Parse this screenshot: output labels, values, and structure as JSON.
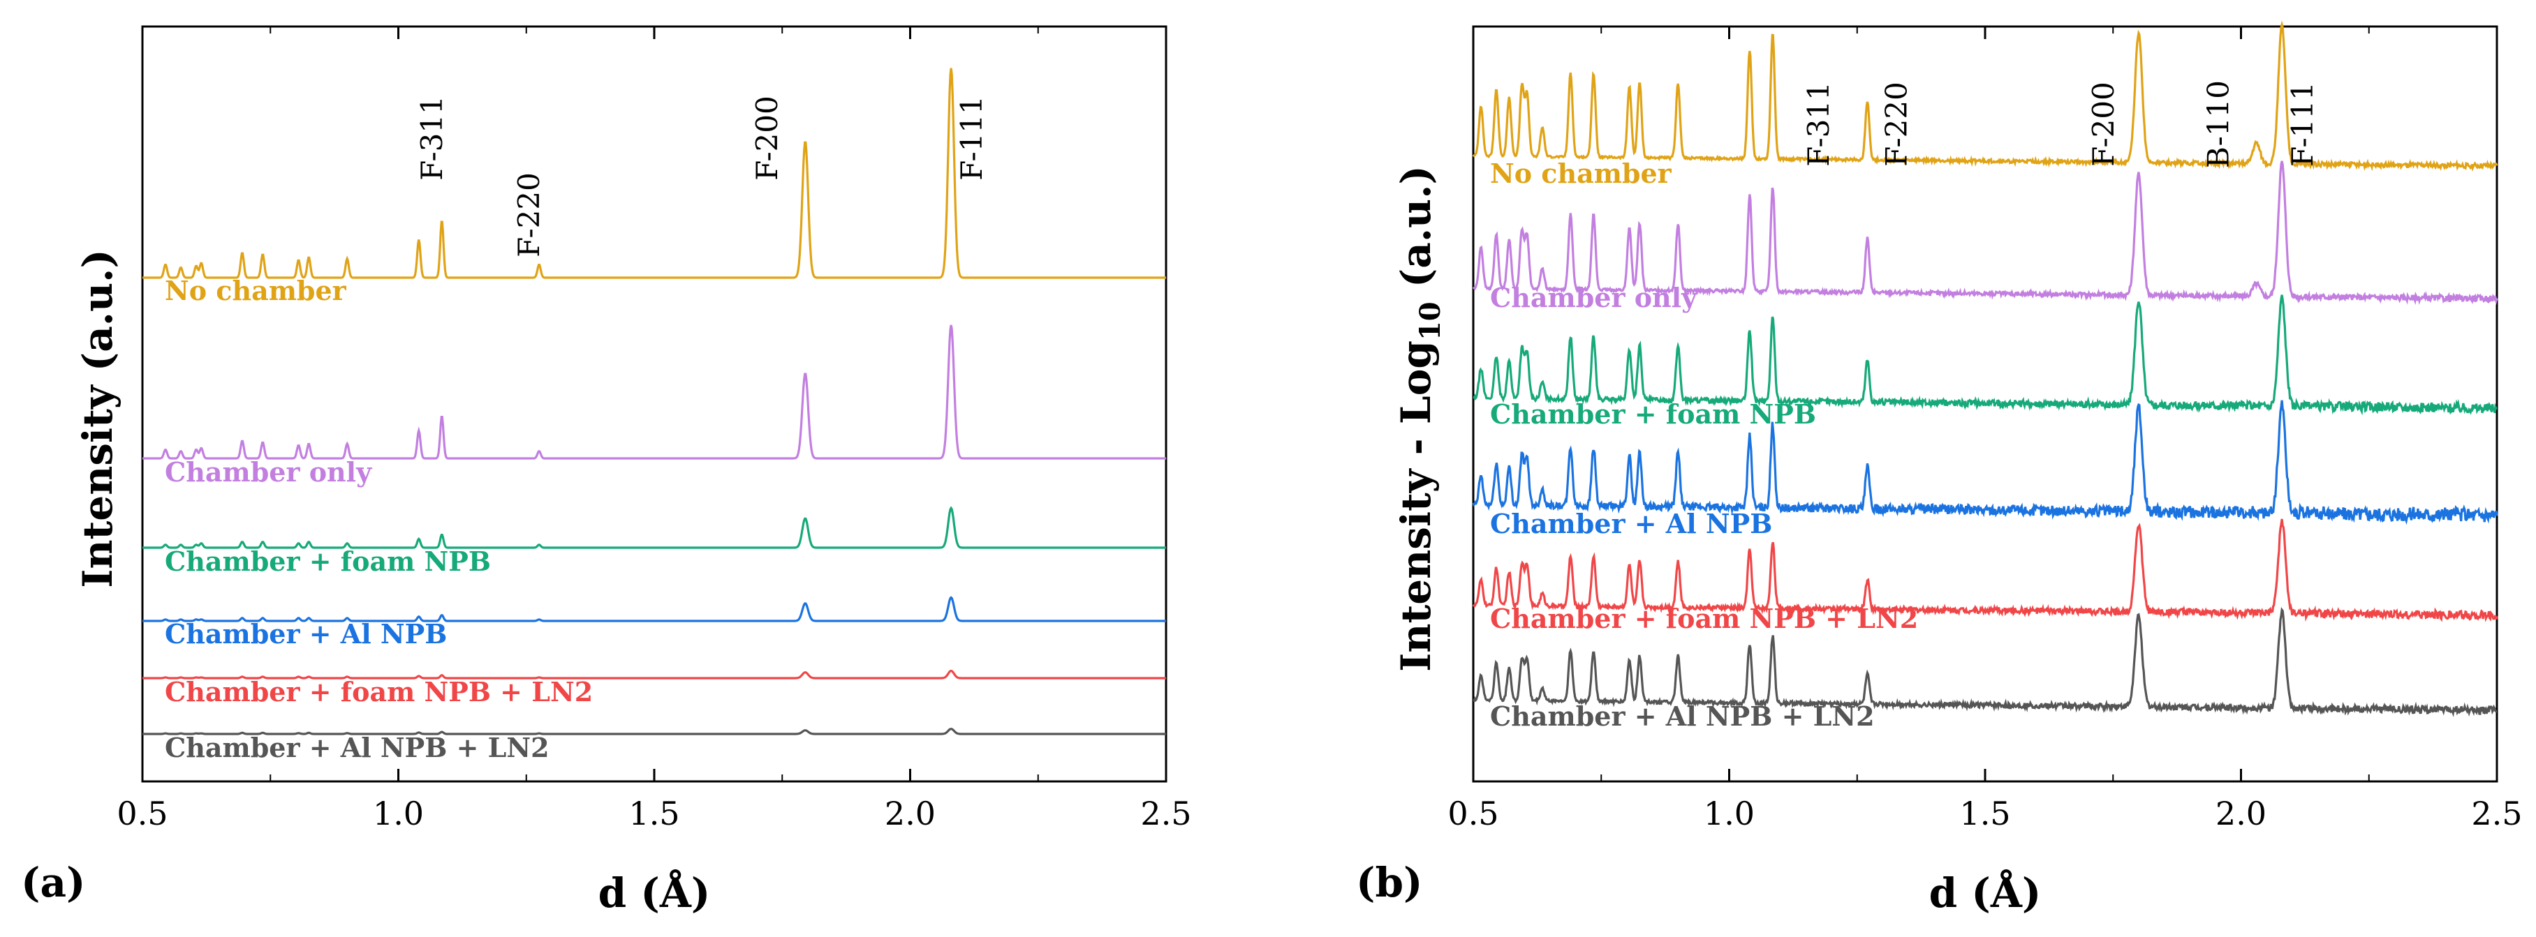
{
  "chart_data": [
    {
      "type": "line",
      "panel_label": "(a)",
      "xlabel": "d (Å)",
      "ylabel": "Intensity (a.u.)",
      "xlim": [
        0.5,
        2.5
      ],
      "x_ticks": [
        "0.5",
        "1.0",
        "1.5",
        "2.0",
        "2.5"
      ],
      "peak_positions": [
        0.545,
        0.575,
        0.605,
        0.615,
        0.695,
        0.735,
        0.805,
        0.825,
        0.9,
        1.04,
        1.085,
        1.275,
        1.795,
        2.08
      ],
      "peak_labels": [
        {
          "text": "F-311",
          "x": 1.085
        },
        {
          "text": "F-220",
          "x": 1.275
        },
        {
          "text": "F-200",
          "x": 1.795
        },
        {
          "text": "F-111",
          "x": 2.08
        }
      ],
      "series": [
        {
          "name": "No chamber",
          "color": "#E0A316",
          "baseline": 0.7,
          "peaks": [
            0.09,
            0.07,
            0.08,
            0.1,
            0.17,
            0.16,
            0.12,
            0.14,
            0.13,
            0.26,
            0.39,
            0.09,
            0.93,
            1.43
          ],
          "noise": 0.0
        },
        {
          "name": "Chamber  only",
          "color": "#C27FE0",
          "baseline": 1.14,
          "peaks": [
            0.06,
            0.05,
            0.06,
            0.07,
            0.12,
            0.11,
            0.09,
            0.1,
            0.1,
            0.19,
            0.29,
            0.05,
            0.58,
            0.91
          ],
          "noise": 0.0
        },
        {
          "name": "Chamber  + foam NPB",
          "color": "#16A97A",
          "baseline": 1.36,
          "peaks": [
            0.02,
            0.02,
            0.02,
            0.03,
            0.04,
            0.04,
            0.03,
            0.04,
            0.03,
            0.06,
            0.09,
            0.02,
            0.2,
            0.27
          ],
          "noise": 0.0
        },
        {
          "name": "Chamber  + Al NPB",
          "color": "#1A73E0",
          "baseline": 1.54,
          "peaks": [
            0.01,
            0.01,
            0.01,
            0.01,
            0.02,
            0.02,
            0.02,
            0.02,
            0.02,
            0.03,
            0.04,
            0.01,
            0.12,
            0.16
          ],
          "noise": 0.0
        },
        {
          "name": "Chamber  + foam NPB + LN2",
          "color": "#F04648",
          "baseline": 1.68,
          "peaks": [
            0.005,
            0.005,
            0.005,
            0.005,
            0.01,
            0.01,
            0.01,
            0.01,
            0.01,
            0.015,
            0.02,
            0.005,
            0.04,
            0.05
          ],
          "noise": 0.0
        },
        {
          "name": "Chamber  + Al NPB + LN2",
          "color": "#555555",
          "baseline": 1.82,
          "peaks": [
            0.004,
            0.004,
            0.004,
            0.004,
            0.008,
            0.008,
            0.006,
            0.008,
            0.006,
            0.01,
            0.014,
            0.004,
            0.025,
            0.035
          ],
          "noise": 0.0
        }
      ]
    },
    {
      "type": "line",
      "panel_label": "(b)",
      "xlabel": "d (Å)",
      "ylabel": "Intensity - Log",
      "ylabel_sub": "10",
      "ylabel_suffix": " (a.u.)",
      "xlim": [
        0.5,
        2.5
      ],
      "x_ticks": [
        "0.5",
        "1.0",
        "1.5",
        "2.0",
        "2.5"
      ],
      "peak_positions": [
        0.515,
        0.545,
        0.57,
        0.595,
        0.605,
        0.635,
        0.69,
        0.735,
        0.805,
        0.825,
        0.9,
        1.04,
        1.085,
        1.27,
        1.8,
        2.03,
        2.08
      ],
      "peak_labels": [
        {
          "text": "F-311",
          "x": 1.085
        },
        {
          "text": "F-220",
          "x": 1.27
        },
        {
          "text": "F-200",
          "x": 1.8
        },
        {
          "text": "B-110",
          "x": 2.03
        },
        {
          "text": "F-111",
          "x": 2.08
        }
      ],
      "series": [
        {
          "name": "No chamber",
          "color": "#E0A316",
          "baseline": 0.0,
          "peaks": [
            0.12,
            0.16,
            0.14,
            0.17,
            0.15,
            0.07,
            0.2,
            0.2,
            0.17,
            0.18,
            0.18,
            0.26,
            0.3,
            0.14,
            0.31,
            0.05,
            0.33
          ],
          "noise": 0.004
        },
        {
          "name": "Chamber  only",
          "color": "#C27FE0",
          "baseline": 0.0,
          "peaks": [
            0.1,
            0.13,
            0.12,
            0.14,
            0.13,
            0.05,
            0.18,
            0.18,
            0.15,
            0.16,
            0.16,
            0.23,
            0.25,
            0.13,
            0.29,
            0.03,
            0.32
          ],
          "noise": 0.005
        },
        {
          "name": "Chamber  + foam NPB",
          "color": "#16A97A",
          "baseline": 0.0,
          "peaks": [
            0.07,
            0.1,
            0.09,
            0.12,
            0.11,
            0.04,
            0.15,
            0.15,
            0.12,
            0.13,
            0.13,
            0.17,
            0.2,
            0.1,
            0.25,
            0.0,
            0.26
          ],
          "noise": 0.008
        },
        {
          "name": "Chamber  + Al NPB",
          "color": "#1A73E0",
          "baseline": 0.0,
          "peaks": [
            0.07,
            0.1,
            0.09,
            0.12,
            0.11,
            0.04,
            0.14,
            0.14,
            0.12,
            0.13,
            0.13,
            0.17,
            0.2,
            0.1,
            0.25,
            0.0,
            0.26
          ],
          "noise": 0.012
        },
        {
          "name": "Chamber  + foam NPB + LN2",
          "color": "#F04648",
          "baseline": 0.0,
          "peaks": [
            0.06,
            0.09,
            0.08,
            0.1,
            0.1,
            0.03,
            0.12,
            0.12,
            0.1,
            0.11,
            0.11,
            0.14,
            0.16,
            0.07,
            0.21,
            0.0,
            0.22
          ],
          "noise": 0.007
        },
        {
          "name": "Chamber  + Al NPB + LN2",
          "color": "#555555",
          "baseline": 0.0,
          "peaks": [
            0.06,
            0.09,
            0.08,
            0.1,
            0.1,
            0.03,
            0.12,
            0.12,
            0.1,
            0.11,
            0.11,
            0.14,
            0.16,
            0.07,
            0.22,
            0.0,
            0.23
          ],
          "noise": 0.006
        }
      ]
    }
  ]
}
